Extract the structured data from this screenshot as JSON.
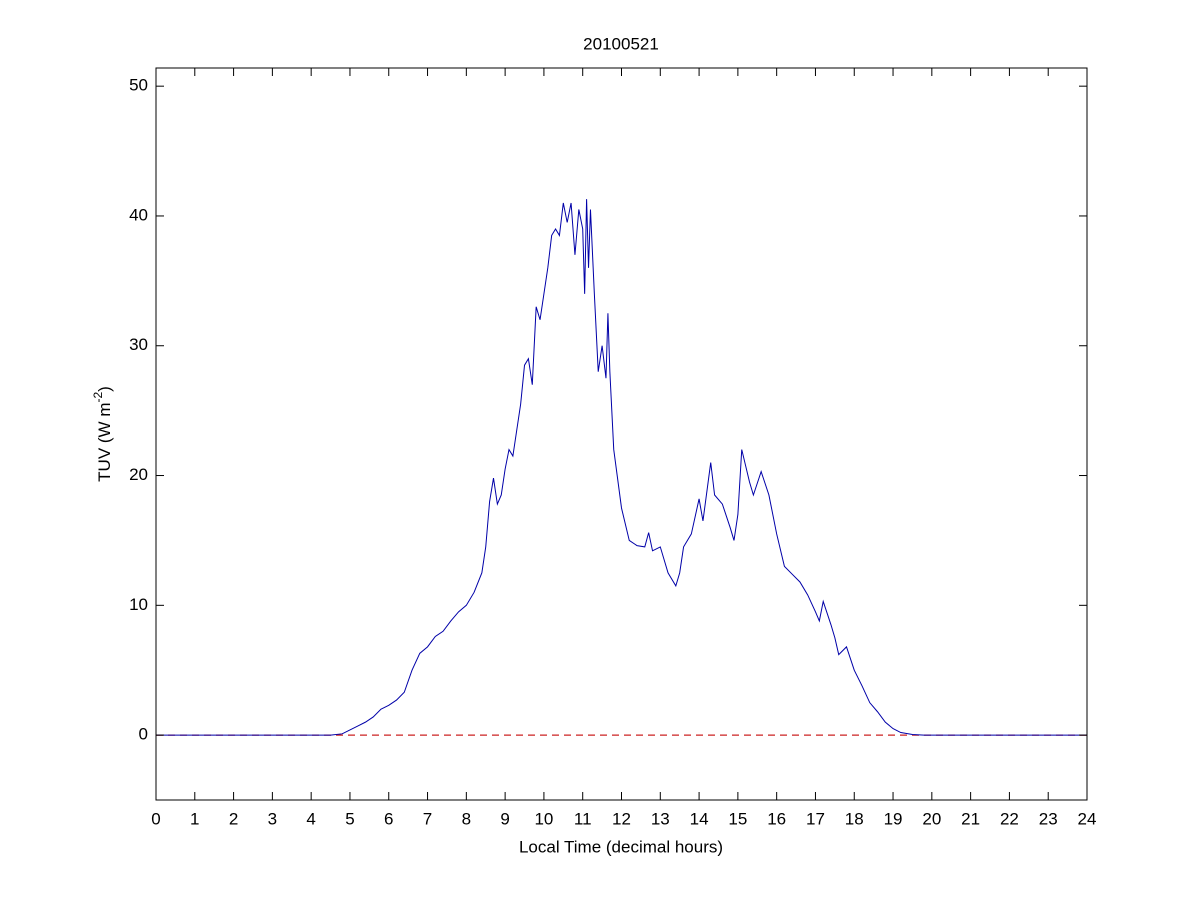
{
  "chart_data": {
    "type": "line",
    "title": "20100521",
    "xlabel": "Local Time (decimal hours)",
    "ylabel": {
      "text": "TUV (W m",
      "superscript": "-2",
      "suffix": ")"
    },
    "xlim": [
      0,
      24
    ],
    "ylim": [
      -5,
      51.4
    ],
    "xticks": [
      0,
      1,
      2,
      3,
      4,
      5,
      6,
      7,
      8,
      9,
      10,
      11,
      12,
      13,
      14,
      15,
      16,
      17,
      18,
      19,
      20,
      21,
      22,
      23,
      24
    ],
    "yticks": [
      0,
      10,
      20,
      30,
      40,
      50
    ],
    "reference_line": {
      "y": 0,
      "color": "#cc2222",
      "dashed": true
    },
    "series": [
      {
        "color": "#0000a8",
        "x": [
          0,
          4.5,
          4.8,
          5.0,
          5.2,
          5.4,
          5.6,
          5.8,
          6.0,
          6.2,
          6.4,
          6.6,
          6.8,
          7.0,
          7.2,
          7.4,
          7.6,
          7.8,
          8.0,
          8.2,
          8.4,
          8.5,
          8.6,
          8.7,
          8.8,
          8.9,
          9.0,
          9.1,
          9.2,
          9.3,
          9.4,
          9.5,
          9.6,
          9.7,
          9.8,
          9.9,
          10.0,
          10.1,
          10.2,
          10.3,
          10.4,
          10.5,
          10.6,
          10.7,
          10.8,
          10.9,
          11.0,
          11.05,
          11.1,
          11.15,
          11.2,
          11.3,
          11.4,
          11.5,
          11.6,
          11.65,
          11.7,
          11.8,
          12.0,
          12.2,
          12.4,
          12.6,
          12.7,
          12.8,
          13.0,
          13.2,
          13.4,
          13.5,
          13.6,
          13.8,
          14.0,
          14.1,
          14.3,
          14.4,
          14.6,
          14.8,
          14.9,
          15.0,
          15.1,
          15.3,
          15.4,
          15.6,
          15.8,
          16.0,
          16.2,
          16.4,
          16.6,
          16.8,
          17.0,
          17.1,
          17.2,
          17.4,
          17.5,
          17.6,
          17.8,
          18.0,
          18.2,
          18.4,
          18.6,
          18.8,
          19.0,
          19.2,
          19.5,
          19.8,
          24
        ],
        "values": [
          0,
          0,
          0.1,
          0.4,
          0.7,
          1.0,
          1.4,
          2.0,
          2.3,
          2.7,
          3.3,
          5.0,
          6.3,
          6.8,
          7.6,
          8.0,
          8.8,
          9.5,
          10.0,
          11.0,
          12.5,
          14.5,
          18.0,
          19.8,
          17.8,
          18.5,
          20.5,
          22.0,
          21.5,
          23.5,
          25.5,
          28.5,
          29.0,
          27.0,
          33.0,
          32.0,
          34.0,
          36.0,
          38.5,
          39.0,
          38.5,
          41.0,
          39.5,
          41.0,
          37.0,
          40.5,
          39.0,
          34.0,
          41.3,
          36.0,
          40.5,
          34.0,
          28.0,
          30.0,
          27.5,
          32.5,
          28.0,
          22.0,
          17.5,
          15.0,
          14.6,
          14.5,
          15.6,
          14.2,
          14.5,
          12.5,
          11.5,
          12.5,
          14.5,
          15.5,
          18.2,
          16.5,
          21.0,
          18.5,
          17.8,
          16.0,
          15.0,
          17.0,
          22.0,
          19.5,
          18.5,
          20.3,
          18.5,
          15.5,
          13.0,
          12.4,
          11.8,
          10.8,
          9.5,
          8.8,
          10.3,
          8.5,
          7.5,
          6.2,
          6.8,
          5.0,
          3.8,
          2.5,
          1.8,
          1.0,
          0.5,
          0.2,
          0.05,
          0,
          0
        ]
      }
    ]
  }
}
